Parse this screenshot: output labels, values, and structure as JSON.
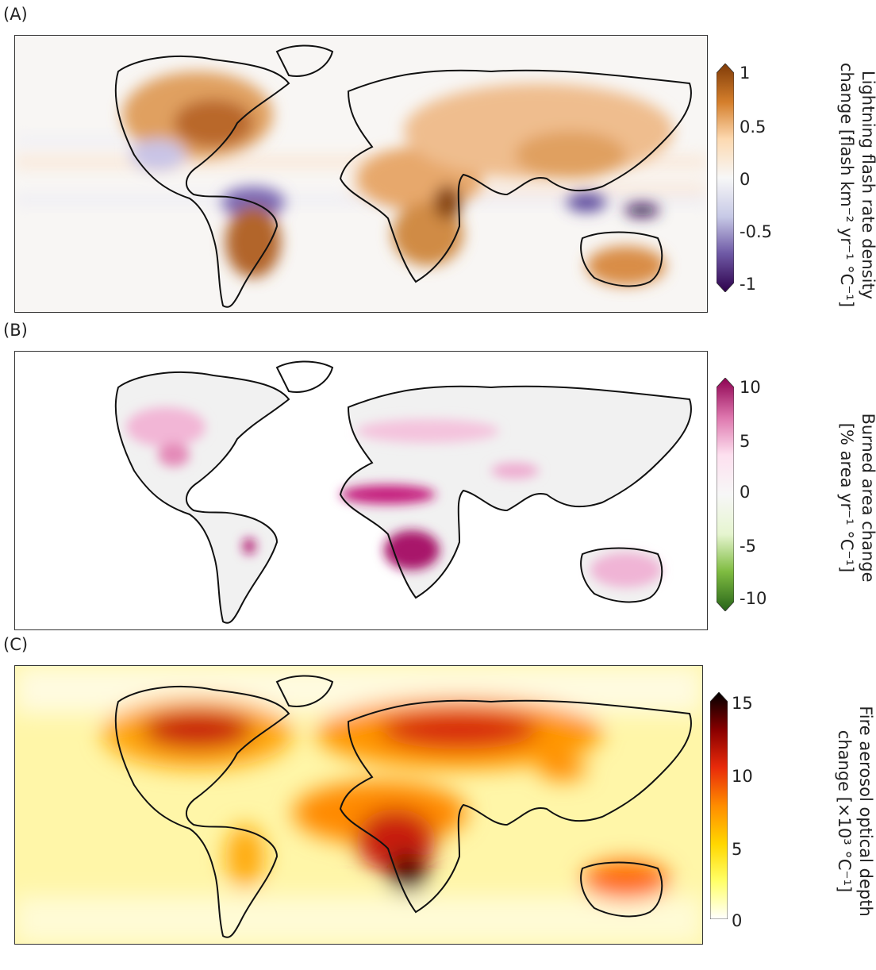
{
  "panels": [
    {
      "label": "(A)",
      "colorbar": {
        "title_line1": "Lightning flash rate density",
        "title_line2": "change [flash km⁻² yr⁻¹ °C⁻¹]",
        "ticks": [
          "1",
          "0.5",
          "0",
          "-0.5",
          "-1"
        ],
        "colors": [
          "#7f3b08",
          "#d57f2c",
          "#fdd9b0",
          "#f7f7f7",
          "#c7c9e6",
          "#6f5aa6",
          "#2d004b"
        ]
      }
    },
    {
      "label": "(B)",
      "colorbar": {
        "title_line1": "Burned area change",
        "title_line2": "[% area yr⁻¹ °C⁻¹]",
        "ticks": [
          "10",
          "5",
          "0",
          "-5",
          "-10"
        ],
        "colors": [
          "#8e0152",
          "#de77ae",
          "#fde0ef",
          "#f7f7f7",
          "#e6f5d0",
          "#7fbc41",
          "#276419"
        ]
      }
    },
    {
      "label": "(C)",
      "colorbar": {
        "title_line1": "Fire aerosol optical depth",
        "title_line2": "change [×10³ °C⁻¹]",
        "ticks": [
          "15",
          "10",
          "5",
          "0"
        ],
        "colors": [
          "#000000",
          "#8b0000",
          "#e82a0a",
          "#ff8c00",
          "#ffd700",
          "#ffff66",
          "#ffffff"
        ]
      }
    }
  ]
}
